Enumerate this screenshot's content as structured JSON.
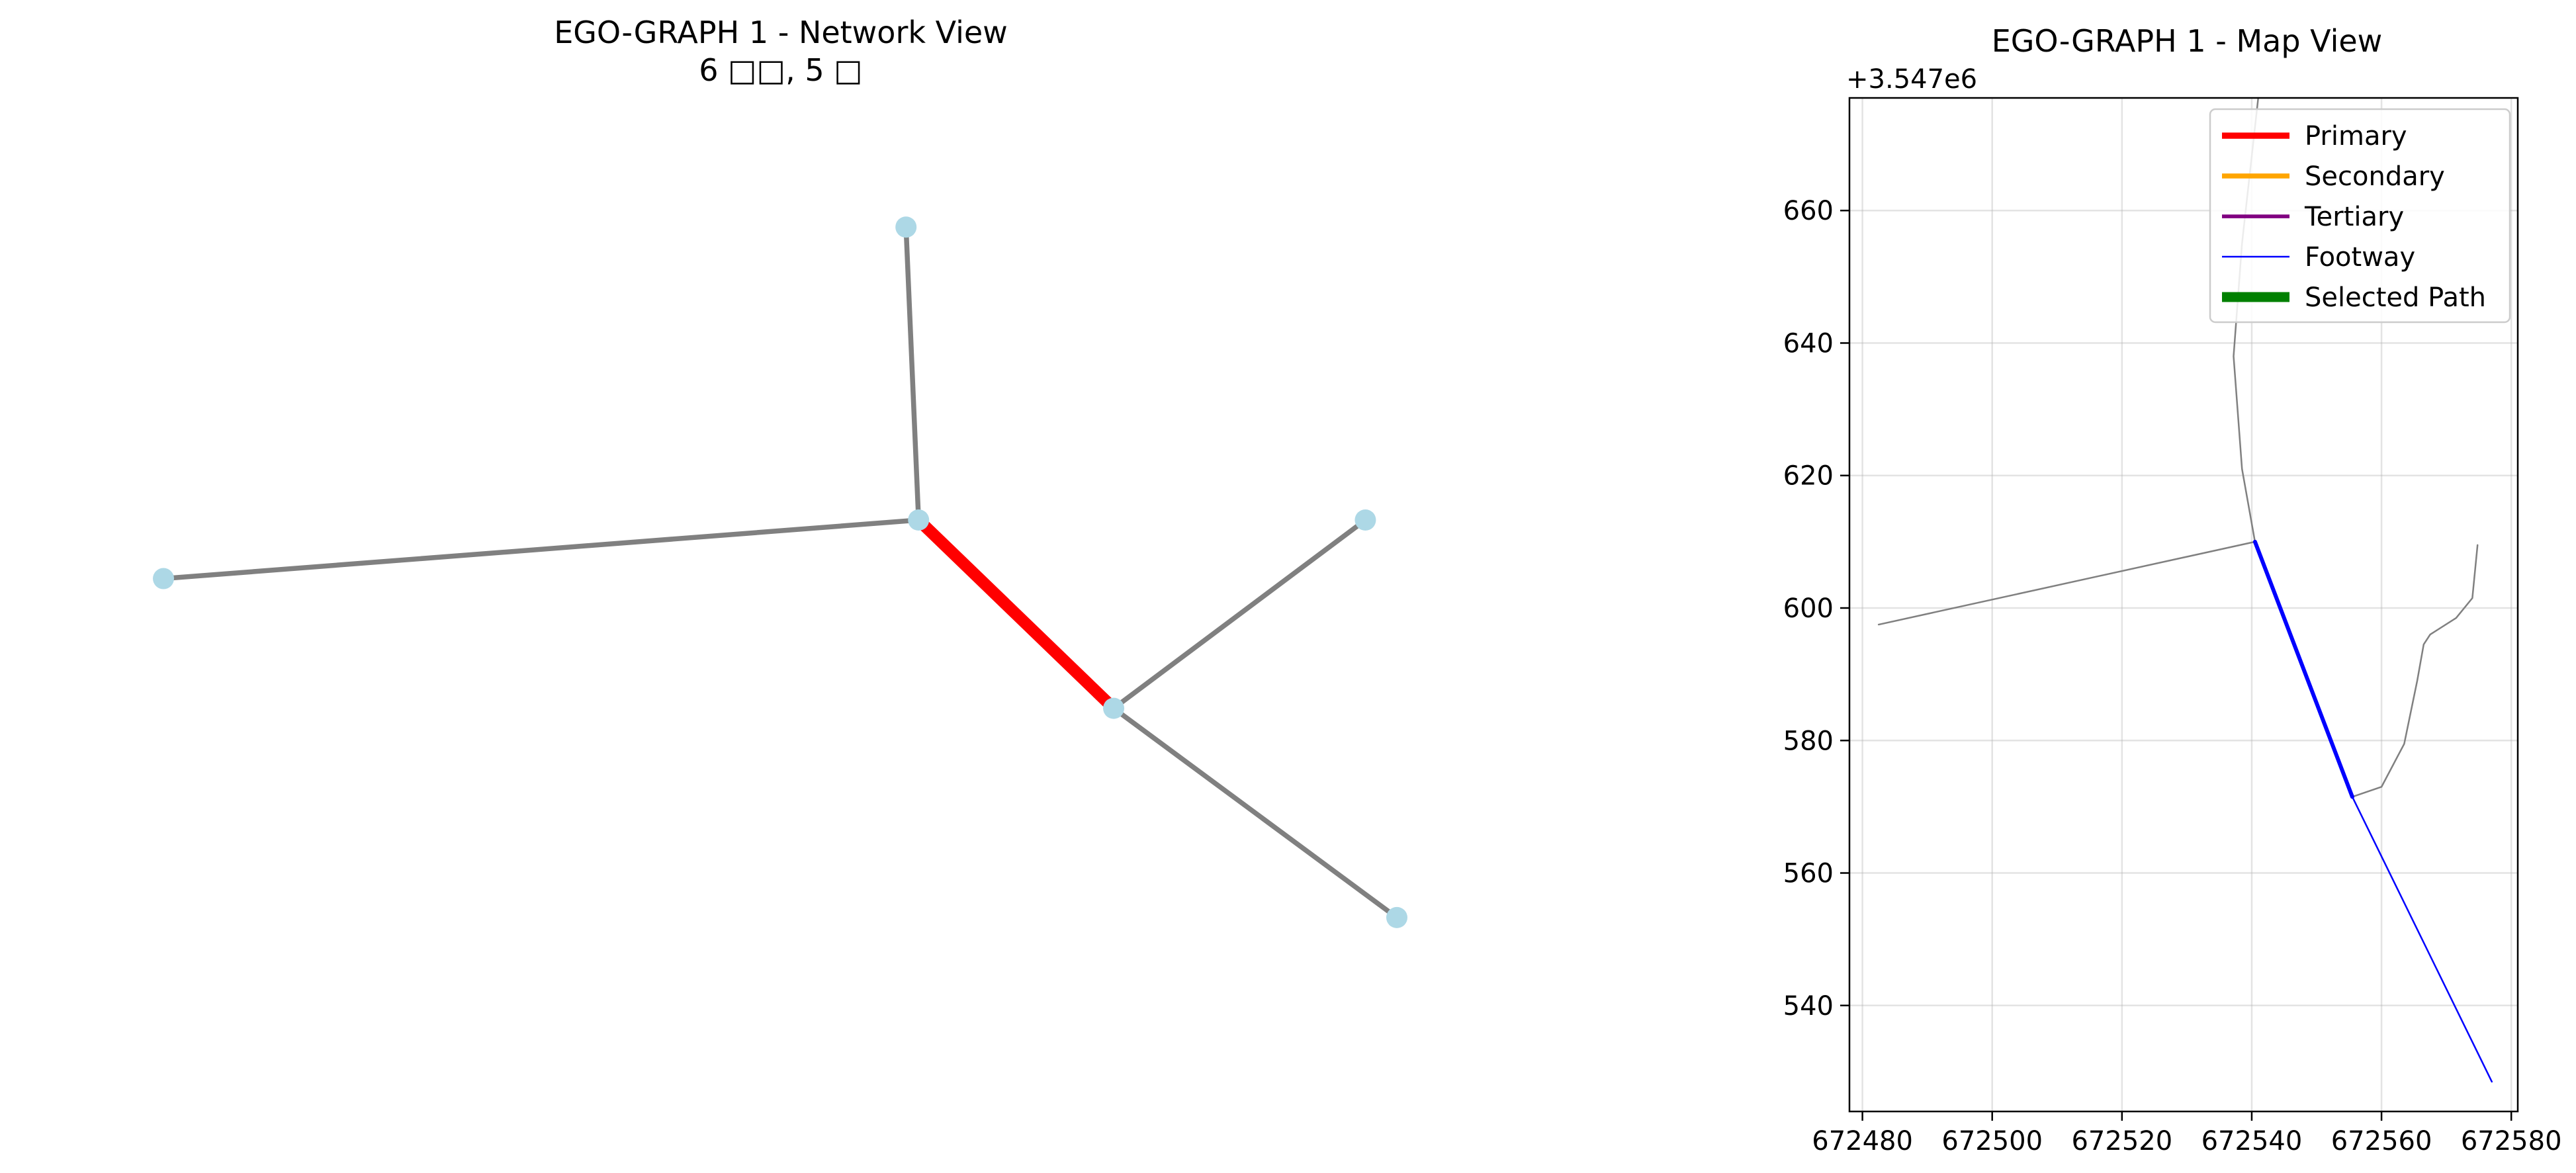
{
  "chart_data": [
    {
      "type": "network",
      "title": "EGO-GRAPH 1 - Network View",
      "subtitle": "6 □□, 5 □",
      "colors": {
        "node": "#add8e6",
        "edge": "#808080",
        "highlight_edge": "#ff0000"
      },
      "nodes": [
        {
          "id": "a",
          "x": 0.6,
          "y": 0.95
        },
        {
          "id": "b",
          "x": 0.61,
          "y": 0.6
        },
        {
          "id": "c",
          "x": 0.01,
          "y": 0.53
        },
        {
          "id": "d",
          "x": 0.765,
          "y": 0.375
        },
        {
          "id": "e",
          "x": 0.965,
          "y": 0.6
        },
        {
          "id": "f",
          "x": 0.99,
          "y": 0.125
        }
      ],
      "edges": [
        {
          "source": "a",
          "target": "b",
          "highlight": false
        },
        {
          "source": "c",
          "target": "b",
          "highlight": false
        },
        {
          "source": "b",
          "target": "d",
          "highlight": true
        },
        {
          "source": "d",
          "target": "e",
          "highlight": false
        },
        {
          "source": "d",
          "target": "f",
          "highlight": false
        }
      ]
    },
    {
      "type": "line",
      "title": "EGO-GRAPH 1 - Map View",
      "y_offset_label": "+3.547e6",
      "xlim": [
        672478,
        672581
      ],
      "ylim": [
        524,
        677
      ],
      "x_ticks": [
        {
          "value": 672480,
          "label": "672480"
        },
        {
          "value": 672500,
          "label": "672500"
        },
        {
          "value": 672520,
          "label": "672520"
        },
        {
          "value": 672540,
          "label": "672540"
        },
        {
          "value": 672560,
          "label": "672560"
        },
        {
          "value": 672580,
          "label": "672580"
        }
      ],
      "y_ticks": [
        {
          "value": 540,
          "label": "540"
        },
        {
          "value": 560,
          "label": "560"
        },
        {
          "value": 580,
          "label": "580"
        },
        {
          "value": 600,
          "label": "600"
        },
        {
          "value": 620,
          "label": "620"
        },
        {
          "value": 640,
          "label": "640"
        },
        {
          "value": 660,
          "label": "660"
        }
      ],
      "grid": true,
      "legend_position": "top-right",
      "legend": [
        {
          "label": "Primary",
          "color": "#ff0000",
          "width": 7.5
        },
        {
          "label": "Secondary",
          "color": "#ffa500",
          "width": 6
        },
        {
          "label": "Tertiary",
          "color": "#800080",
          "width": 4.5
        },
        {
          "label": "Footway",
          "color": "#0000ff",
          "width": 2
        },
        {
          "label": "Selected Path",
          "color": "#008000",
          "width": 12
        }
      ],
      "series": [
        {
          "color": "#808080",
          "width": 2.5,
          "points": [
            [
              672540.5,
              610
            ],
            [
              672482.5,
              597.5
            ]
          ]
        },
        {
          "color": "#808080",
          "width": 2.5,
          "points": [
            [
              672540.5,
              610
            ],
            [
              672538.5,
              621
            ],
            [
              672537.2,
              638
            ],
            [
              672538.5,
              655
            ],
            [
              672541,
              677
            ]
          ]
        },
        {
          "color": "#808080",
          "width": 2.5,
          "points": [
            [
              672555.5,
              571.5
            ],
            [
              672560,
              573
            ],
            [
              672563.5,
              579.5
            ],
            [
              672565.5,
              589
            ],
            [
              672566.5,
              594.5
            ],
            [
              672567.5,
              596
            ],
            [
              672571.5,
              598.5
            ],
            [
              672574,
              601.5
            ],
            [
              672574.8,
              609.5
            ]
          ]
        },
        {
          "color": "#0000ff",
          "width": 2.5,
          "points": [
            [
              672555.5,
              571.5
            ],
            [
              672577,
              528.5
            ]
          ]
        },
        {
          "color": "#0000ff",
          "width": 6,
          "points": [
            [
              672540.5,
              610
            ],
            [
              672555.5,
              571.5
            ]
          ]
        }
      ]
    }
  ]
}
